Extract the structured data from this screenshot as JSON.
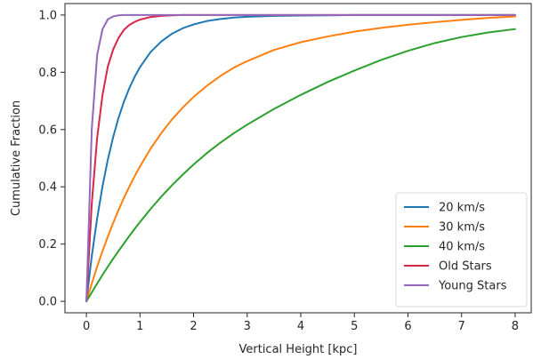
{
  "chart_data": {
    "type": "line",
    "title": "",
    "xlabel": "Vertical Height [kpc]",
    "ylabel": "Cumulative Fraction",
    "xlim": [
      -0.4,
      8.3
    ],
    "ylim": [
      -0.04,
      1.04
    ],
    "xticks": [
      0,
      1,
      2,
      3,
      4,
      5,
      6,
      7,
      8
    ],
    "xtick_labels": [
      "0",
      "1",
      "2",
      "3",
      "4",
      "5",
      "6",
      "7",
      "8"
    ],
    "yticks": [
      0.0,
      0.2,
      0.4,
      0.6,
      0.8,
      1.0
    ],
    "ytick_labels": [
      "0.0",
      "0.2",
      "0.4",
      "0.6",
      "0.8",
      "1.0"
    ],
    "grid": false,
    "legend_position": "lower-right",
    "x": [
      0,
      0.1,
      0.2,
      0.3,
      0.4,
      0.5,
      0.6,
      0.7,
      0.8,
      0.9,
      1.0,
      1.2,
      1.4,
      1.6,
      1.8,
      2.0,
      2.25,
      2.5,
      2.75,
      3.0,
      3.5,
      4.0,
      4.5,
      5.0,
      5.5,
      6.0,
      6.5,
      7.0,
      7.5,
      8.0
    ],
    "series": [
      {
        "name": "20 km/s",
        "color": "#1f77b4",
        "values": [
          0.0,
          0.157,
          0.289,
          0.401,
          0.495,
          0.574,
          0.641,
          0.697,
          0.744,
          0.784,
          0.818,
          0.871,
          0.908,
          0.935,
          0.954,
          0.967,
          0.979,
          0.986,
          0.991,
          0.994,
          0.997,
          0.998,
          0.999,
          1.0,
          1.0,
          1.0,
          1.0,
          1.0,
          1.0,
          1.0
        ]
      },
      {
        "name": "30 km/s",
        "color": "#ff7f0e",
        "values": [
          0.0,
          0.062,
          0.121,
          0.175,
          0.226,
          0.274,
          0.319,
          0.361,
          0.4,
          0.437,
          0.471,
          0.534,
          0.588,
          0.636,
          0.677,
          0.714,
          0.753,
          0.787,
          0.816,
          0.839,
          0.878,
          0.905,
          0.925,
          0.942,
          0.955,
          0.966,
          0.975,
          0.983,
          0.99,
          0.995
        ]
      },
      {
        "name": "40 km/s",
        "color": "#2ca02c",
        "values": [
          0.0,
          0.031,
          0.062,
          0.092,
          0.121,
          0.149,
          0.176,
          0.202,
          0.228,
          0.253,
          0.277,
          0.323,
          0.366,
          0.406,
          0.443,
          0.478,
          0.518,
          0.554,
          0.587,
          0.617,
          0.672,
          0.721,
          0.766,
          0.806,
          0.843,
          0.875,
          0.902,
          0.923,
          0.939,
          0.951
        ]
      },
      {
        "name": "Old Stars",
        "color": "#d62748",
        "values": [
          0.0,
          0.34,
          0.57,
          0.72,
          0.82,
          0.88,
          0.92,
          0.948,
          0.965,
          0.976,
          0.984,
          0.993,
          0.997,
          0.999,
          1.0,
          1.0,
          1.0,
          1.0,
          1.0,
          1.0,
          1.0,
          1.0,
          1.0,
          1.0,
          1.0,
          1.0,
          1.0,
          1.0,
          1.0,
          1.0
        ]
      },
      {
        "name": "Young Stars",
        "color": "#9467bd",
        "values": [
          0.0,
          0.6,
          0.86,
          0.95,
          0.985,
          0.995,
          0.999,
          1.0,
          1.0,
          1.0,
          1.0,
          1.0,
          1.0,
          1.0,
          1.0,
          1.0,
          1.0,
          1.0,
          1.0,
          1.0,
          1.0,
          1.0,
          1.0,
          1.0,
          1.0,
          1.0,
          1.0,
          1.0,
          1.0,
          1.0
        ]
      }
    ]
  }
}
